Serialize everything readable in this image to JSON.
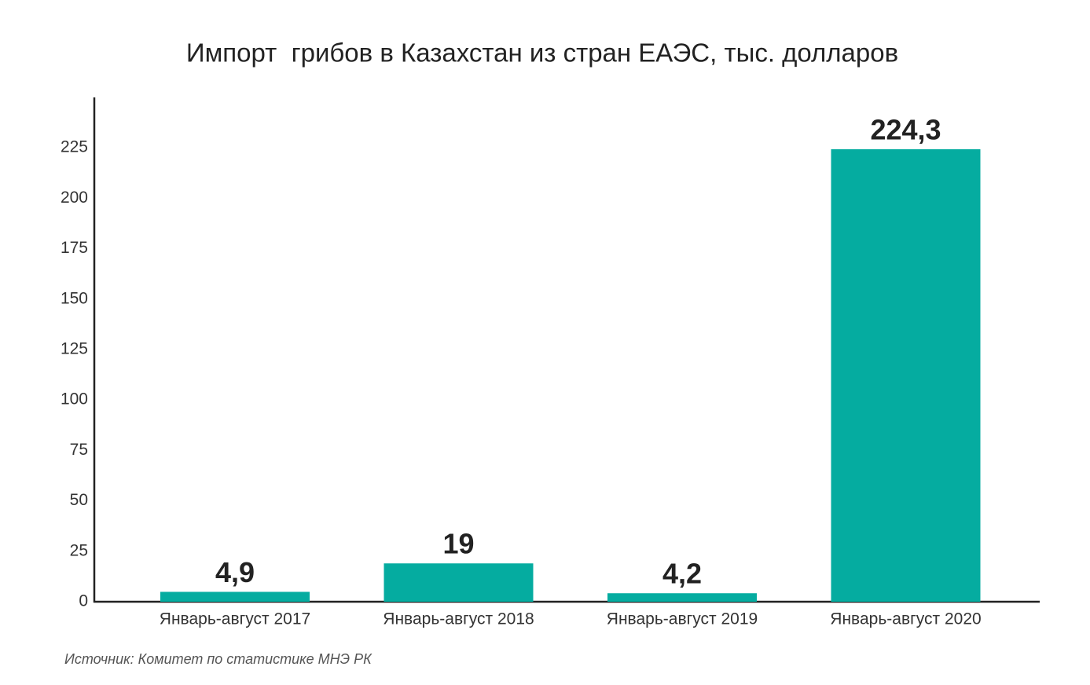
{
  "chart_data": {
    "type": "bar",
    "title": "Импорт  грибов в Казахстан из стран ЕАЭС, тыс. долларов",
    "categories": [
      "Январь-август 2017",
      "Январь-август 2018",
      "Январь-август 2019",
      "Январь-август 2020"
    ],
    "values": [
      4.9,
      19,
      4.2,
      224.3
    ],
    "value_labels": [
      "4,9",
      "19",
      "4,2",
      "224,3"
    ],
    "color": "#05aca0",
    "ylim": [
      0,
      250
    ],
    "yticks": [
      0,
      25,
      50,
      75,
      100,
      125,
      150,
      175,
      200,
      225
    ],
    "grid": false,
    "source": "Источник: Комитет по статистике МНЭ РК"
  }
}
